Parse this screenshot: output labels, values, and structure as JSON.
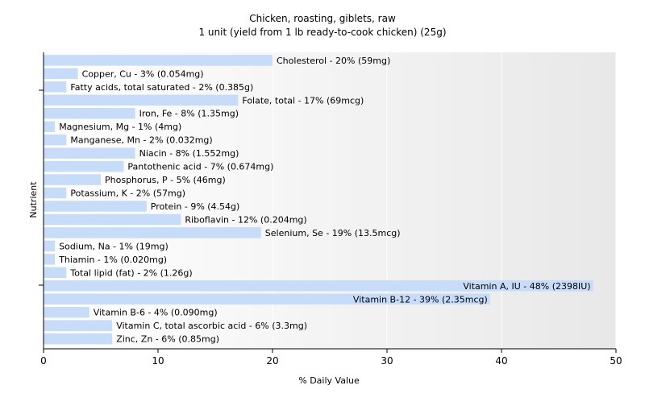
{
  "colors": {
    "bar": "#c6dcf9",
    "plot_bg_gradient_end": "#e8e8e8",
    "grid": "#ffffff",
    "axis": "#000000",
    "text": "#000000"
  },
  "chart_data": {
    "type": "bar",
    "orientation": "horizontal",
    "title": "Chicken, roasting, giblets, raw",
    "subtitle": "1 unit (yield from 1 lb ready-to-cook chicken) (25g)",
    "xlabel": "% Daily Value",
    "ylabel": "Nutrient",
    "xlim": [
      0,
      50
    ],
    "xticks": [
      0,
      10,
      20,
      30,
      40,
      50
    ],
    "grid": "vertical",
    "categories": [
      "Cholesterol",
      "Copper, Cu",
      "Fatty acids, total saturated",
      "Folate, total",
      "Iron, Fe",
      "Magnesium, Mg",
      "Manganese, Mn",
      "Niacin",
      "Pantothenic acid",
      "Phosphorus, P",
      "Potassium, K",
      "Protein",
      "Riboflavin",
      "Selenium, Se",
      "Sodium, Na",
      "Thiamin",
      "Total lipid (fat)",
      "Vitamin A, IU",
      "Vitamin B-12",
      "Vitamin B-6",
      "Vitamin C, total ascorbic acid",
      "Zinc, Zn"
    ],
    "values": [
      20,
      3,
      2,
      17,
      8,
      1,
      2,
      8,
      7,
      5,
      2,
      9,
      12,
      19,
      1,
      1,
      2,
      48,
      39,
      4,
      6,
      6
    ],
    "labels": [
      "Cholesterol - 20% (59mg)",
      "Copper, Cu - 3% (0.054mg)",
      "Fatty acids, total saturated - 2% (0.385g)",
      "Folate, total - 17% (69mcg)",
      "Iron, Fe - 8% (1.35mg)",
      "Magnesium, Mg - 1% (4mg)",
      "Manganese, Mn - 2% (0.032mg)",
      "Niacin - 8% (1.552mg)",
      "Pantothenic acid - 7% (0.674mg)",
      "Phosphorus, P - 5% (46mg)",
      "Potassium, K - 2% (57mg)",
      "Protein - 9% (4.54g)",
      "Riboflavin - 12% (0.204mg)",
      "Selenium, Se - 19% (13.5mcg)",
      "Sodium, Na - 1% (19mg)",
      "Thiamin - 1% (0.020mg)",
      "Total lipid (fat) - 2% (1.26g)",
      "Vitamin A, IU - 48% (2398IU)",
      "Vitamin B-12 - 39% (2.35mcg)",
      "Vitamin B-6 - 4% (0.090mg)",
      "Vitamin C, total ascorbic acid - 6% (3.3mg)",
      "Zinc, Zn - 6% (0.85mg)"
    ]
  }
}
